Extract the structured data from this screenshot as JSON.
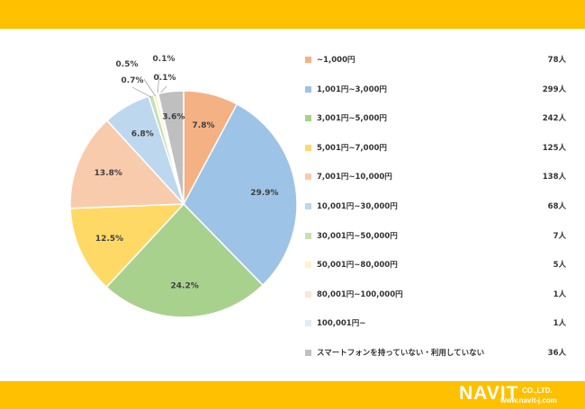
{
  "chart_data": {
    "type": "pie",
    "start_angle_deg": 0,
    "direction": "clockwise",
    "legend_position": "right",
    "slices": [
      {
        "label": "~1,000円",
        "count": "78人",
        "pct": 7.8,
        "pct_label": "7.8%",
        "color": "#F4B183"
      },
      {
        "label": "1,001円~3,000円",
        "count": "299人",
        "pct": 29.9,
        "pct_label": "29.9%",
        "color": "#9DC3E6"
      },
      {
        "label": "3,001円~5,000円",
        "count": "242人",
        "pct": 24.2,
        "pct_label": "24.2%",
        "color": "#A9D18E"
      },
      {
        "label": "5,001円~7,000円",
        "count": "125人",
        "pct": 12.5,
        "pct_label": "12.5%",
        "color": "#FFD966"
      },
      {
        "label": "7,001円~10,000円",
        "count": "138人",
        "pct": 13.8,
        "pct_label": "13.8%",
        "color": "#F8CBAD"
      },
      {
        "label": "10,001円~30,000円",
        "count": "68人",
        "pct": 6.8,
        "pct_label": "6.8%",
        "color": "#BDD7EE"
      },
      {
        "label": "30,001円~50,000円",
        "count": "7人",
        "pct": 0.7,
        "pct_label": "0.7%",
        "color": "#C5E0B4"
      },
      {
        "label": "50,001円~80,000円",
        "count": "5人",
        "pct": 0.5,
        "pct_label": "0.5%",
        "color": "#FFF2CC"
      },
      {
        "label": "80,001円~100,000円",
        "count": "1人",
        "pct": 0.1,
        "pct_label": "0.1%",
        "color": "#FBE5D6"
      },
      {
        "label": "100,001円~",
        "count": "1人",
        "pct": 0.1,
        "pct_label": "0.1%",
        "color": "#DEEBF7"
      },
      {
        "label": "スマートフォンを持っていない・利用していない",
        "count": "36人",
        "pct": 3.6,
        "pct_label": "3.6%",
        "color": "#BFBFBF"
      }
    ]
  },
  "logo": {
    "name": "NAVIT",
    "suffix": "CO.,LTD.",
    "url": "www.navit-j.com"
  },
  "colors": {
    "band": "#FFC000",
    "logo_text": "#FFFFFF"
  }
}
